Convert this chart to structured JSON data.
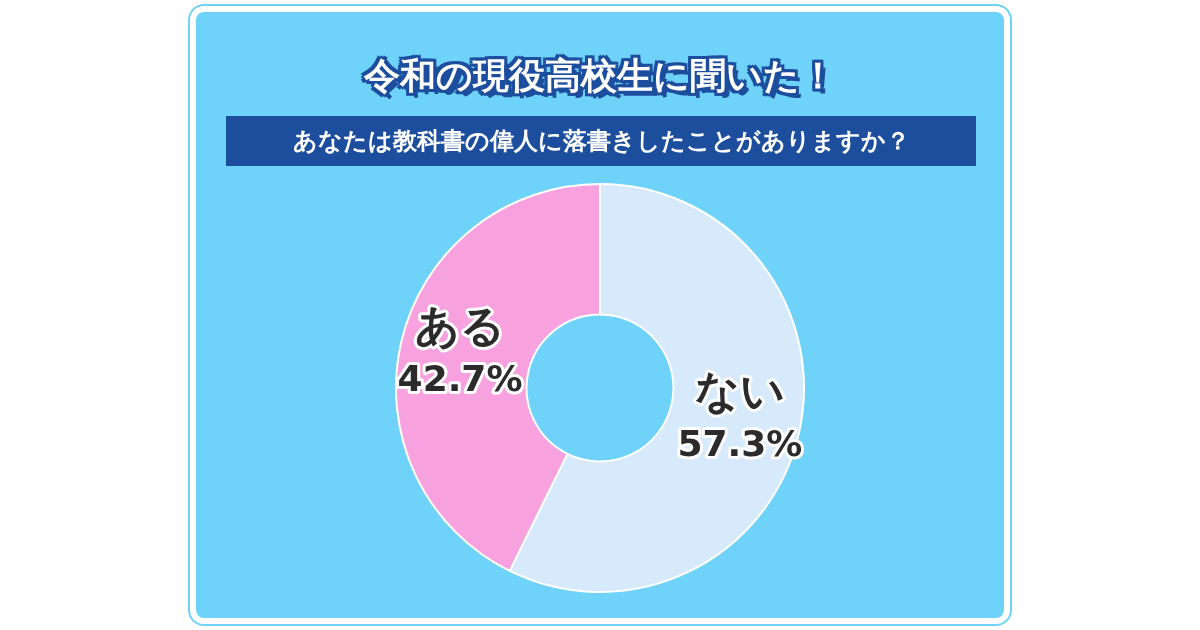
{
  "chart_data": {
    "type": "donut",
    "title": "令和の現役高校生に聞いた！",
    "subtitle": "あなたは教科書の偉人に落書きしたことがありますか？",
    "categories": [
      "ない",
      "ある"
    ],
    "values": [
      57.3,
      42.7
    ],
    "value_labels": [
      "57.3%",
      "42.7%"
    ],
    "colors": [
      "#d6eafb",
      "#f7a2de"
    ],
    "legend": false
  }
}
